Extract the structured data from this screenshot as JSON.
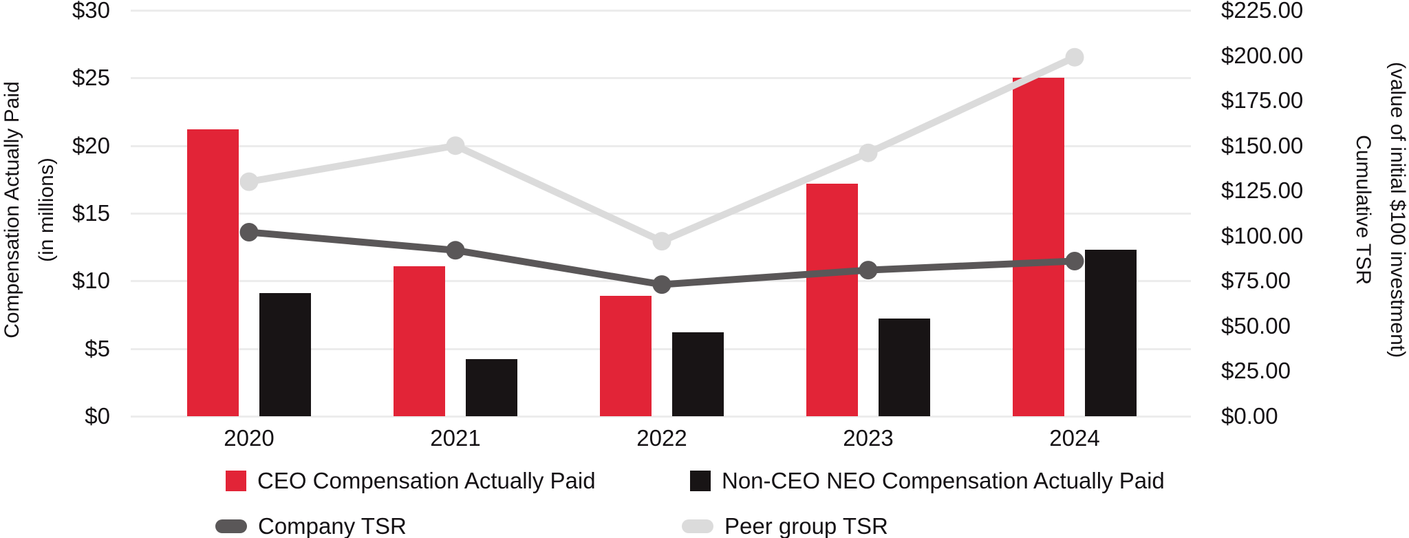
{
  "chart_data": {
    "type": "bar",
    "subtype": "combo-bar-line-dual-axis",
    "categories": [
      "2020",
      "2021",
      "2022",
      "2023",
      "2024"
    ],
    "bar_series": [
      {
        "name": "CEO Compensation Actually Paid",
        "axis": "left",
        "color": "#e22437",
        "values": [
          21.2,
          11.1,
          8.9,
          17.2,
          25.0
        ]
      },
      {
        "name": "Non-CEO NEO Compensation Actually Paid",
        "axis": "left",
        "color": "#181415",
        "values": [
          9.1,
          4.2,
          6.2,
          7.2,
          12.3
        ]
      }
    ],
    "line_series": [
      {
        "name": "Company TSR",
        "axis": "right",
        "color": "#5a5758",
        "values": [
          102,
          92,
          73,
          81,
          86
        ]
      },
      {
        "name": "Peer group TSR",
        "axis": "right",
        "color": "#dbdbdb",
        "values": [
          130,
          150,
          97,
          146,
          199
        ]
      }
    ],
    "left_axis": {
      "title_line1": "Compensation Actually Paid",
      "title_line2": "(in millions)",
      "min": 0,
      "max": 30,
      "tick_step": 5,
      "tick_labels": [
        "$0",
        "$5",
        "$10",
        "$15",
        "$20",
        "$25",
        "$30"
      ]
    },
    "right_axis": {
      "title_line1": "Cumulative TSR",
      "title_line2": "(value of initial $100 investment)",
      "min": 0,
      "max": 225,
      "tick_step": 25,
      "tick_labels": [
        "$0.00",
        "$25.00",
        "$50.00",
        "$75.00",
        "$100.00",
        "$125.00",
        "$150.00",
        "$175.00",
        "$200.00",
        "$225.00"
      ]
    },
    "grid": true,
    "gridline_color": "#ececec",
    "legend_position": "bottom"
  }
}
